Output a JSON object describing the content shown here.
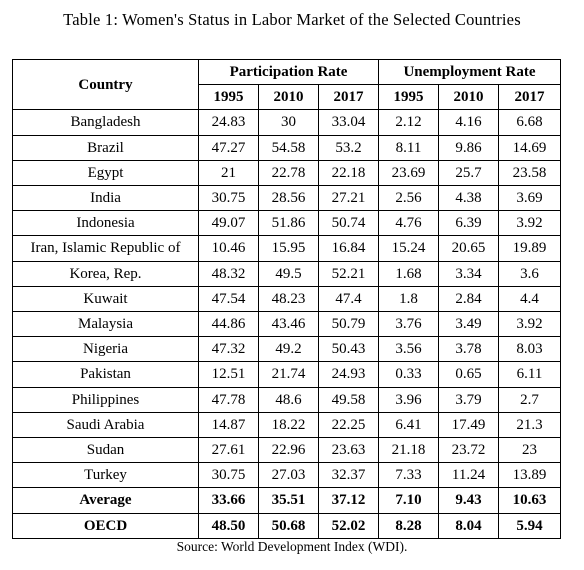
{
  "caption": "Table 1: Women's Status in Labor Market of the Selected Countries",
  "headers": {
    "country": "Country",
    "participation": "Participation Rate",
    "unemployment": "Unemployment Rate",
    "years": [
      "1995",
      "2010",
      "2017",
      "1995",
      "2010",
      "2017"
    ]
  },
  "rows": [
    [
      "Bangladesh",
      "24.83",
      "30",
      "33.04",
      "2.12",
      "4.16",
      "6.68"
    ],
    [
      "Brazil",
      "47.27",
      "54.58",
      "53.2",
      "8.11",
      "9.86",
      "14.69"
    ],
    [
      "Egypt",
      "21",
      "22.78",
      "22.18",
      "23.69",
      "25.7",
      "23.58"
    ],
    [
      "India",
      "30.75",
      "28.56",
      "27.21",
      "2.56",
      "4.38",
      "3.69"
    ],
    [
      "Indonesia",
      "49.07",
      "51.86",
      "50.74",
      "4.76",
      "6.39",
      "3.92"
    ],
    [
      "Iran, Islamic Republic of",
      "10.46",
      "15.95",
      "16.84",
      "15.24",
      "20.65",
      "19.89"
    ],
    [
      "Korea, Rep.",
      "48.32",
      "49.5",
      "52.21",
      "1.68",
      "3.34",
      "3.6"
    ],
    [
      "Kuwait",
      "47.54",
      "48.23",
      "47.4",
      "1.8",
      "2.84",
      "4.4"
    ],
    [
      "Malaysia",
      "44.86",
      "43.46",
      "50.79",
      "3.76",
      "3.49",
      "3.92"
    ],
    [
      "Nigeria",
      "47.32",
      "49.2",
      "50.43",
      "3.56",
      "3.78",
      "8.03"
    ],
    [
      "Pakistan",
      "12.51",
      "21.74",
      "24.93",
      "0.33",
      "0.65",
      "6.11"
    ],
    [
      "Philippines",
      "47.78",
      "48.6",
      "49.58",
      "3.96",
      "3.79",
      "2.7"
    ],
    [
      "Saudi Arabia",
      "14.87",
      "18.22",
      "22.25",
      "6.41",
      "17.49",
      "21.3"
    ],
    [
      "Sudan",
      "27.61",
      "22.96",
      "23.63",
      "21.18",
      "23.72",
      "23"
    ],
    [
      "Turkey",
      "30.75",
      "27.03",
      "32.37",
      "7.33",
      "11.24",
      "13.89"
    ]
  ],
  "summary_rows": [
    [
      "Average",
      "33.66",
      "35.51",
      "37.12",
      "7.10",
      "9.43",
      "10.63"
    ],
    [
      "OECD",
      "48.50",
      "50.68",
      "52.02",
      "8.28",
      "8.04",
      "5.94"
    ]
  ],
  "source": "Source: World Development Index (WDI)."
}
